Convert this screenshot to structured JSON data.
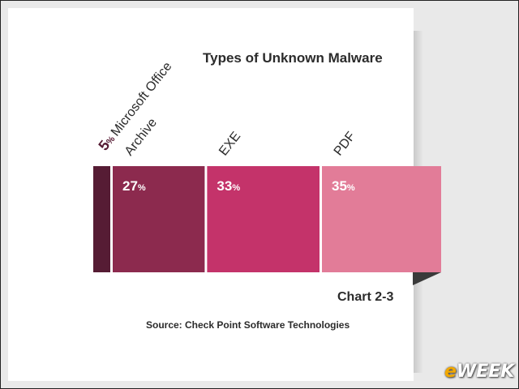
{
  "title": "Types of Unknown Malware",
  "caption": "Chart 2-3",
  "source": "Source: Check Point Software Technologies",
  "logo": {
    "prefix": "e",
    "rest": "WEEK"
  },
  "chart_data": {
    "type": "bar",
    "stacked": true,
    "orientation": "horizontal",
    "title": "Types of Unknown Malware",
    "unit": "%",
    "categories": [
      "Microsoft Office",
      "Archive",
      "EXE",
      "PDF"
    ],
    "values": [
      5,
      27,
      33,
      35
    ],
    "colors": [
      "#561c34",
      "#8c2a4e",
      "#c4336a",
      "#e27c98"
    ],
    "value_label_colors": [
      "#561c34",
      "#ffffff",
      "#ffffff",
      "#ffffff"
    ]
  }
}
